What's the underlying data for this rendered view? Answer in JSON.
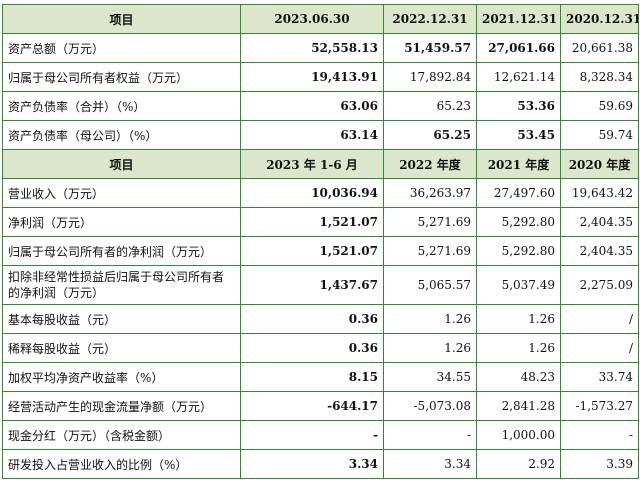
{
  "balance_header": [
    "项目",
    "2023.06.30",
    "2022.12.31",
    "2021.12.31",
    "2020.12.31"
  ],
  "balance_rows": [
    {
      "label": "资产总额（万元）",
      "v": [
        "52,558.13",
        "51,459.57",
        "27,061.66",
        "20,661.38"
      ],
      "bold": [
        true,
        true,
        true,
        false
      ]
    },
    {
      "label": "归属于母公司所有者权益（万元）",
      "v": [
        "19,413.91",
        "17,892.84",
        "12,621.14",
        "8,328.34"
      ],
      "bold": [
        true,
        false,
        false,
        false
      ]
    },
    {
      "label": "资产负债率（合并）（%）",
      "v": [
        "63.06",
        "65.23",
        "53.36",
        "59.69"
      ],
      "bold": [
        true,
        false,
        true,
        false
      ]
    },
    {
      "label": "资产负债率（母公司）（%）",
      "v": [
        "63.14",
        "65.25",
        "53.45",
        "59.74"
      ],
      "bold": [
        true,
        true,
        true,
        false
      ]
    }
  ],
  "income_header": [
    "项目",
    "2023 年 1-6 月",
    "2022 年度",
    "2021 年度",
    "2020 年度"
  ],
  "income_rows": [
    {
      "label": "营业收入（万元）",
      "v": [
        "10,036.94",
        "36,263.97",
        "27,497.60",
        "19,643.42"
      ],
      "bold": [
        true,
        false,
        false,
        false
      ]
    },
    {
      "label": "净利润（万元）",
      "v": [
        "1,521.07",
        "5,271.69",
        "5,292.80",
        "2,404.35"
      ],
      "bold": [
        true,
        false,
        false,
        false
      ]
    },
    {
      "label": "归属于母公司所有者的净利润（万元）",
      "v": [
        "1,521.07",
        "5,271.69",
        "5,292.80",
        "2,404.35"
      ],
      "bold": [
        true,
        false,
        false,
        false
      ]
    },
    {
      "label": "扣除非经常性损益后归属于母公司所有者的净利润（万元）",
      "v": [
        "1,437.67",
        "5,065.57",
        "5,037.49",
        "2,275.09"
      ],
      "bold": [
        true,
        false,
        false,
        false
      ],
      "tall": true
    },
    {
      "label": "基本每股收益（元）",
      "v": [
        "0.36",
        "1.26",
        "1.26",
        "/"
      ],
      "bold": [
        true,
        false,
        false,
        false
      ]
    },
    {
      "label": "稀释每股收益（元）",
      "v": [
        "0.36",
        "1.26",
        "1.26",
        "/"
      ],
      "bold": [
        true,
        false,
        false,
        false
      ]
    },
    {
      "label": "加权平均净资产收益率（%）",
      "v": [
        "8.15",
        "34.55",
        "48.23",
        "33.74"
      ],
      "bold": [
        true,
        false,
        false,
        false
      ]
    },
    {
      "label": "经营活动产生的现金流量净额（万元）",
      "v": [
        "-644.17",
        "-5,073.08",
        "2,841.28",
        "-1,573.27"
      ],
      "bold": [
        true,
        false,
        false,
        false
      ]
    },
    {
      "label": "现金分红（万元）（含税金额）",
      "v": [
        "-",
        "-",
        "1,000.00",
        "-"
      ],
      "bold": [
        true,
        false,
        false,
        false
      ]
    },
    {
      "label": "研发投入占营业收入的比例（%）",
      "v": [
        "3.34",
        "3.34",
        "2.92",
        "3.39"
      ],
      "bold": [
        true,
        false,
        false,
        false
      ]
    }
  ]
}
